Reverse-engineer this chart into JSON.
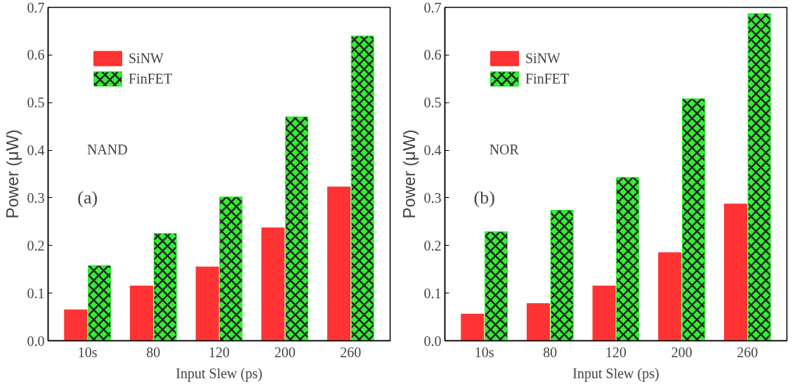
{
  "chart_data": [
    {
      "type": "bar",
      "categories": [
        "10s",
        "80",
        "120",
        "200",
        "260"
      ],
      "xlabel": "Input Slew (ps)",
      "ylabel": "Power (μW)",
      "annotations": [
        "NAND",
        "(a)"
      ],
      "series": [
        {
          "name": "SiNW",
          "color": "#ff3333",
          "values": [
            0.065,
            0.115,
            0.155,
            0.237,
            0.323
          ]
        },
        {
          "name": "FinFET",
          "color": "#33ee33",
          "values": [
            0.158,
            0.225,
            0.302,
            0.47,
            0.64
          ]
        }
      ],
      "ylim": [
        0,
        0.7
      ],
      "yticks": [
        {
          "value": 0,
          "label": "0.0"
        },
        0.1,
        0.2,
        0.3,
        0.4,
        0.5,
        0.6,
        0.7
      ],
      "grid": false,
      "legend": "top left"
    },
    {
      "type": "bar",
      "categories": [
        "10s",
        "80",
        "120",
        "200",
        "260"
      ],
      "xlabel": "Input Slew (ps)",
      "ylabel": "Power (μW)",
      "annotations": [
        "NOR",
        "(b)"
      ],
      "series": [
        {
          "name": "SiNW",
          "color": "#ff3333",
          "values": [
            0.056,
            0.078,
            0.115,
            0.185,
            0.287
          ]
        },
        {
          "name": "FinFET",
          "color": "#33ee33",
          "values": [
            0.229,
            0.274,
            0.343,
            0.508,
            0.687
          ]
        }
      ],
      "ylim": [
        0,
        0.7
      ],
      "yticks": [
        {
          "value": 0,
          "label": "0.0"
        },
        0.1,
        0.2,
        0.3,
        0.4,
        0.5,
        0.6,
        0.7
      ],
      "grid": false,
      "legend": "top left"
    }
  ]
}
